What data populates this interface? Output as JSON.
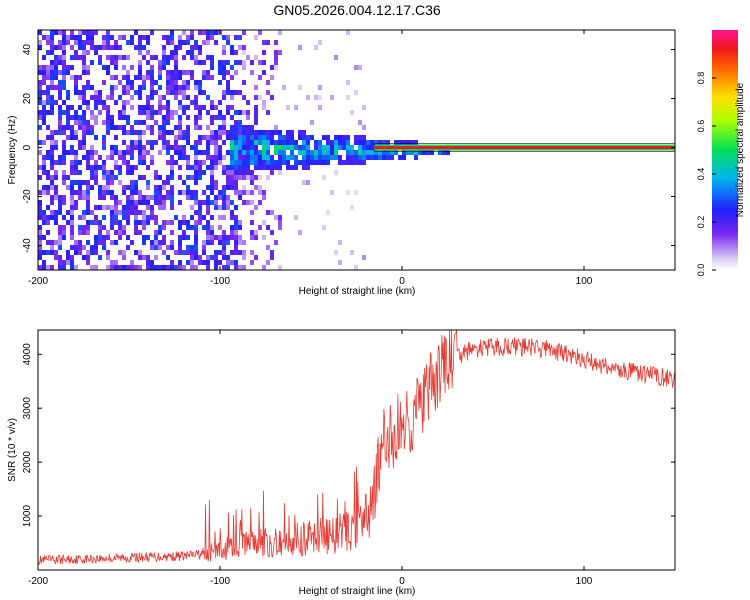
{
  "title": "GN05.2026.004.12.17.C36",
  "chart_data": [
    {
      "type": "heatmap",
      "xlabel": "Height of straight line (km)",
      "ylabel": "Frequency (Hz)",
      "xlim": [
        -200,
        150
      ],
      "ylim": [
        -50,
        48
      ],
      "xticks": [
        -200,
        -100,
        0,
        100
      ],
      "yticks": [
        -40,
        -20,
        0,
        20,
        40
      ],
      "colorbar": {
        "label": "Normalized spectral amplitude",
        "range": [
          0,
          1
        ],
        "ticks": [
          0.0,
          0.2,
          0.4,
          0.6,
          0.8
        ]
      },
      "regions": [
        {
          "name": "broadband noise",
          "x": [
            -200,
            -90
          ],
          "freq": [
            -50,
            48
          ],
          "amplitude": [
            0.15,
            0.3
          ]
        },
        {
          "name": "sparse noise",
          "x": [
            -90,
            -60
          ],
          "freq": [
            -50,
            48
          ],
          "amplitude": [
            0.05,
            0.2
          ]
        },
        {
          "name": "signal spread",
          "x": [
            -95,
            25
          ],
          "freq": [
            -8,
            8
          ],
          "amplitude": [
            0.3,
            0.6
          ]
        },
        {
          "name": "carrier line",
          "x": [
            -15,
            150
          ],
          "freq": [
            0,
            0
          ],
          "amplitude": [
            0.9,
            1.0
          ]
        }
      ]
    },
    {
      "type": "line",
      "series": [
        {
          "name": "SNR",
          "color": "#e83a32"
        }
      ],
      "xlabel": "Height of straight line (km)",
      "ylabel": "SNR (10 * v/v)",
      "xlim": [
        -200,
        150
      ],
      "ylim": [
        0,
        4450
      ],
      "xticks": [
        -200,
        -100,
        0,
        100
      ],
      "yticks": [
        1000,
        2000,
        3000,
        4000
      ],
      "profile_x": [
        -200,
        -120,
        -105,
        -90,
        -70,
        -50,
        -30,
        -20,
        -10,
        0,
        5,
        15,
        25,
        40,
        60,
        80,
        100,
        120,
        150
      ],
      "profile_y": [
        180,
        260,
        320,
        450,
        520,
        600,
        700,
        900,
        2300,
        2700,
        2800,
        3300,
        3900,
        4100,
        4150,
        4100,
        3900,
        3700,
        3550
      ]
    }
  ]
}
